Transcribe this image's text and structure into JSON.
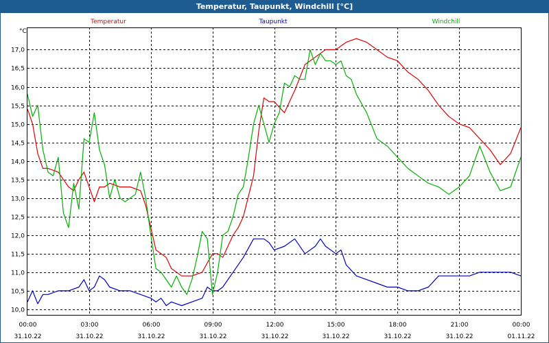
{
  "window": {
    "title": "Temperatur, Taupunkt, Windchill [°C]"
  },
  "chart_data": {
    "type": "line",
    "title": "Temperatur, Taupunkt, Windchill [°C]",
    "ylabel": "°C",
    "xlabel": "",
    "ylim": [
      9.85,
      17.6
    ],
    "xlim": [
      0,
      24
    ],
    "grid": true,
    "yticks": [
      10.0,
      10.5,
      11.0,
      11.5,
      12.0,
      12.5,
      13.0,
      13.5,
      14.0,
      14.5,
      15.0,
      15.5,
      16.0,
      16.5,
      17.0
    ],
    "ytick_labels": [
      "10,0",
      "10,5",
      "11,0",
      "11,5",
      "12,0",
      "12,5",
      "13,0",
      "13,5",
      "14,0",
      "14,5",
      "15,0",
      "15,5",
      "16,0",
      "16,5",
      "17,0"
    ],
    "xticks": [
      {
        "x": 0,
        "time": "00:00",
        "date": "31.10.22"
      },
      {
        "x": 3,
        "time": "03:00",
        "date": "31.10.22"
      },
      {
        "x": 6,
        "time": "06:00",
        "date": "31.10.22"
      },
      {
        "x": 9,
        "time": "09:00",
        "date": "31.10.22"
      },
      {
        "x": 12,
        "time": "12:00",
        "date": "31.10.22"
      },
      {
        "x": 15,
        "time": "15:00",
        "date": "31.10.22"
      },
      {
        "x": 18,
        "time": "18:00",
        "date": "31.10.22"
      },
      {
        "x": 21,
        "time": "21:00",
        "date": "31.10.22"
      },
      {
        "x": 24,
        "time": "00:00",
        "date": "01.11.22"
      }
    ],
    "series": [
      {
        "name": "Temperatur",
        "color": "#e00000",
        "x": [
          0,
          0.25,
          0.5,
          0.75,
          1,
          1.5,
          2,
          2.25,
          2.5,
          2.75,
          3,
          3.25,
          3.5,
          3.75,
          4,
          4.5,
          5,
          5.5,
          5.75,
          6,
          6.25,
          6.5,
          6.75,
          7,
          7.5,
          8,
          8.5,
          9,
          9.25,
          9.5,
          10,
          10.25,
          10.5,
          11,
          11.25,
          11.5,
          11.75,
          12,
          12.5,
          13,
          13.5,
          14,
          14.5,
          15,
          15.5,
          16,
          16.5,
          17,
          17.5,
          18,
          18.5,
          19,
          19.5,
          20,
          20.5,
          21,
          21.5,
          22,
          22.5,
          23,
          23.5,
          24
        ],
        "values": [
          15.4,
          15.0,
          14.2,
          13.8,
          13.8,
          13.7,
          13.3,
          13.2,
          13.5,
          13.7,
          13.3,
          12.9,
          13.3,
          13.3,
          13.4,
          13.3,
          13.3,
          13.2,
          12.8,
          12.2,
          11.6,
          11.5,
          11.4,
          11.1,
          10.9,
          10.9,
          11.0,
          11.5,
          11.5,
          11.4,
          12.0,
          12.2,
          12.5,
          13.6,
          14.8,
          15.7,
          15.6,
          15.6,
          15.3,
          15.9,
          16.6,
          16.8,
          17.0,
          17.0,
          17.2,
          17.3,
          17.2,
          17.0,
          16.8,
          16.7,
          16.4,
          16.2,
          15.9,
          15.5,
          15.2,
          15.0,
          14.9,
          14.6,
          14.3,
          13.9,
          14.2,
          14.9
        ]
      },
      {
        "name": "Taupunkt",
        "color": "#0000c0",
        "x": [
          0,
          0.25,
          0.5,
          0.75,
          1,
          1.5,
          2,
          2.5,
          2.75,
          3,
          3.25,
          3.5,
          3.75,
          4,
          4.5,
          5,
          5.5,
          6,
          6.25,
          6.5,
          6.75,
          7,
          7.5,
          8,
          8.5,
          8.75,
          9,
          9.25,
          9.5,
          10,
          10.5,
          11,
          11.25,
          11.5,
          11.75,
          12,
          12.5,
          13,
          13.5,
          14,
          14.25,
          14.5,
          15,
          15.25,
          15.5,
          16,
          16.5,
          17,
          17.5,
          18,
          18.5,
          19,
          19.5,
          20,
          20.5,
          21,
          21.5,
          22,
          22.5,
          23,
          23.5,
          24
        ],
        "values": [
          10.2,
          10.5,
          10.15,
          10.4,
          10.4,
          10.5,
          10.5,
          10.6,
          10.8,
          10.5,
          10.6,
          10.9,
          10.8,
          10.6,
          10.5,
          10.5,
          10.4,
          10.3,
          10.2,
          10.3,
          10.1,
          10.2,
          10.1,
          10.2,
          10.3,
          10.6,
          10.5,
          10.5,
          10.6,
          11.0,
          11.4,
          11.9,
          11.9,
          11.9,
          11.8,
          11.6,
          11.7,
          11.9,
          11.5,
          11.7,
          11.9,
          11.7,
          11.5,
          11.6,
          11.2,
          10.9,
          10.8,
          10.7,
          10.6,
          10.6,
          10.5,
          10.5,
          10.6,
          10.9,
          10.9,
          10.9,
          10.9,
          11.0,
          11.0,
          11.0,
          11.0,
          10.9
        ]
      },
      {
        "name": "Windchill",
        "color": "#00b000",
        "x": [
          0,
          0.25,
          0.5,
          0.75,
          1,
          1.25,
          1.5,
          1.75,
          2,
          2.25,
          2.5,
          2.75,
          3,
          3.25,
          3.5,
          3.75,
          4,
          4.25,
          4.5,
          4.75,
          5,
          5.25,
          5.5,
          5.75,
          6,
          6.25,
          6.5,
          6.75,
          7,
          7.25,
          7.5,
          7.75,
          8,
          8.25,
          8.5,
          8.75,
          9,
          9.25,
          9.5,
          9.75,
          10,
          10.25,
          10.5,
          10.75,
          11,
          11.25,
          11.5,
          11.75,
          12,
          12.25,
          12.5,
          12.75,
          13,
          13.25,
          13.5,
          13.75,
          14,
          14.25,
          14.5,
          14.75,
          15,
          15.25,
          15.5,
          15.75,
          16,
          16.5,
          17,
          17.5,
          18,
          18.5,
          19,
          19.5,
          20,
          20.5,
          21,
          21.5,
          22,
          22.5,
          23,
          23.5,
          24
        ],
        "values": [
          15.8,
          15.2,
          15.5,
          14.3,
          13.7,
          13.6,
          14.1,
          12.6,
          12.2,
          13.4,
          12.7,
          14.6,
          14.5,
          15.3,
          14.3,
          13.9,
          13.0,
          13.5,
          13.0,
          12.9,
          13.0,
          13.1,
          13.7,
          13.0,
          12.0,
          11.1,
          11.0,
          10.8,
          10.6,
          10.9,
          10.6,
          10.4,
          10.8,
          11.4,
          12.1,
          11.9,
          10.4,
          11.0,
          12.0,
          12.1,
          12.5,
          13.1,
          13.3,
          14.1,
          15.0,
          15.5,
          15.0,
          14.5,
          15.0,
          15.3,
          16.1,
          16.0,
          16.3,
          16.2,
          16.2,
          17.0,
          16.6,
          16.9,
          16.7,
          16.7,
          16.6,
          16.7,
          16.3,
          16.2,
          15.8,
          15.3,
          14.6,
          14.4,
          14.1,
          13.8,
          13.6,
          13.4,
          13.3,
          13.1,
          13.3,
          13.6,
          14.4,
          13.7,
          13.2,
          13.3,
          14.1
        ]
      }
    ]
  }
}
